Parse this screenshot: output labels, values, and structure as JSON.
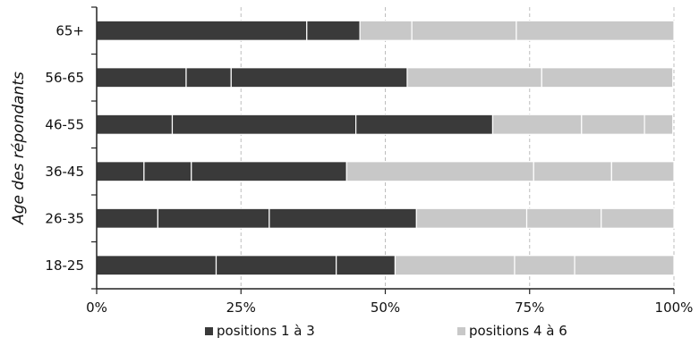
{
  "chart_data": {
    "type": "bar",
    "orientation": "horizontal",
    "stacked": true,
    "percent_stacked": true,
    "ylabel": "Age des répondants",
    "xlim": [
      0,
      100
    ],
    "x_tick_labels": [
      "0%",
      "25%",
      "50%",
      "75%",
      "100%"
    ],
    "x_ticks": [
      0,
      25,
      50,
      75,
      100
    ],
    "grid": "vertical dashed",
    "legend_position": "bottom",
    "categories": [
      "65+",
      "56-65",
      "46-55",
      "36-45",
      "26-35",
      "18-25"
    ],
    "series": [
      {
        "name": "positions 1 à 3",
        "color": "#3a3a3a",
        "segments": [
          [
            36.4,
            9.2
          ],
          [
            15.5,
            7.8,
            30.5
          ],
          [
            13.1,
            31.8,
            23.7
          ],
          [
            8.2,
            8.2,
            26.9
          ],
          [
            10.6,
            19.3,
            25.5
          ],
          [
            20.7,
            20.8,
            10.2
          ]
        ]
      },
      {
        "name": "positions 4 à 6",
        "color": "#c8c8c8",
        "segments": [
          [
            9.0,
            18.1,
            27.3
          ],
          [
            23.3,
            22.7
          ],
          [
            15.4,
            10.9,
            4.9
          ],
          [
            32.4,
            13.5,
            10.8
          ],
          [
            19.1,
            12.9,
            12.6
          ],
          [
            20.7,
            10.4,
            17.2
          ]
        ]
      }
    ]
  }
}
